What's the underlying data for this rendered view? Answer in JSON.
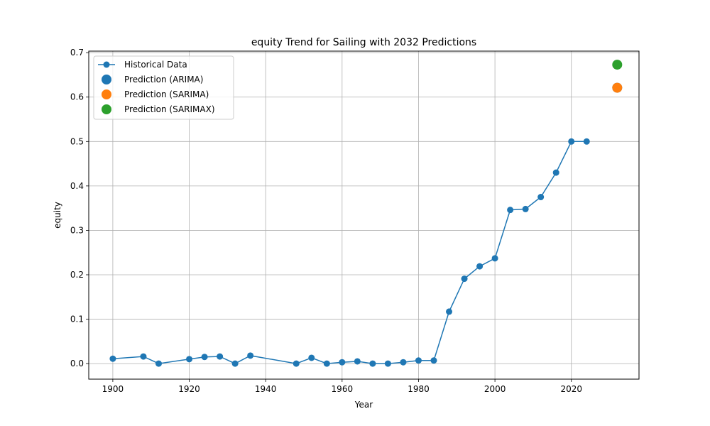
{
  "chart_data": {
    "type": "line",
    "title": "equity Trend for Sailing with 2032 Predictions",
    "xlabel": "Year",
    "ylabel": "equity",
    "xlim": [
      1893.7,
      2037.7
    ],
    "ylim": [
      -0.035,
      0.7035
    ],
    "xticks": [
      1900,
      1920,
      1940,
      1960,
      1980,
      2000,
      2020
    ],
    "yticks": [
      0.0,
      0.1,
      0.2,
      0.3,
      0.4,
      0.5,
      0.6,
      0.7
    ],
    "ytick_labels": [
      "0.0",
      "0.1",
      "0.2",
      "0.3",
      "0.4",
      "0.5",
      "0.6",
      "0.7"
    ],
    "grid": true,
    "legend_position": "top-left",
    "series": [
      {
        "name": "Historical Data",
        "kind": "line-markers",
        "color": "#1f77b4",
        "x": [
          1900,
          1908,
          1912,
          1920,
          1924,
          1928,
          1932,
          1936,
          1948,
          1952,
          1956,
          1960,
          1964,
          1968,
          1972,
          1976,
          1980,
          1984,
          1988,
          1992,
          1996,
          2000,
          2004,
          2008,
          2012,
          2016,
          2020,
          2024
        ],
        "y": [
          0.011,
          0.016,
          0.0,
          0.01,
          0.015,
          0.016,
          0.0,
          0.018,
          0.0,
          0.013,
          0.0,
          0.003,
          0.005,
          0.0,
          0.0,
          0.003,
          0.007,
          0.007,
          0.117,
          0.191,
          0.219,
          0.237,
          0.346,
          0.348,
          0.375,
          0.43,
          0.5,
          0.5
        ]
      },
      {
        "name": "Prediction (ARIMA)",
        "kind": "point",
        "color": "#1f77b4",
        "x": [
          2032
        ],
        "y": [
          0.621
        ]
      },
      {
        "name": "Prediction (SARIMA)",
        "kind": "point",
        "color": "#ff7f0e",
        "x": [
          2032
        ],
        "y": [
          0.621
        ]
      },
      {
        "name": "Prediction (SARIMAX)",
        "kind": "point",
        "color": "#2ca02c",
        "x": [
          2032
        ],
        "y": [
          0.673
        ]
      }
    ]
  }
}
